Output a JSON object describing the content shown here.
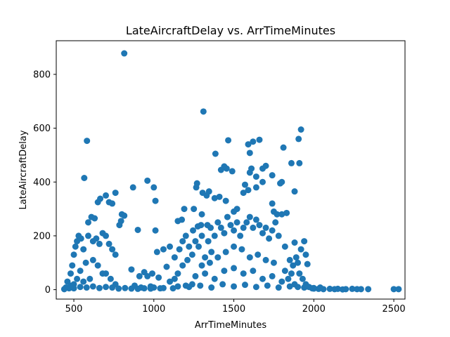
{
  "chart_data": {
    "type": "scatter",
    "title": "LateAircraftDelay vs. ArrTimeMinutes",
    "xlabel": "ArrTimeMinutes",
    "ylabel": "LateAircraftDelay",
    "xlim": [
      390,
      2570
    ],
    "ylim": [
      -35,
      925
    ],
    "xticks": [
      500,
      1000,
      1500,
      2000,
      2500
    ],
    "yticks": [
      0,
      200,
      400,
      600,
      800
    ],
    "grid": false,
    "marker_color": "#1f77b4",
    "series": [
      {
        "points": [
          [
            815,
            878
          ],
          [
            1310,
            662
          ],
          [
            582,
            553
          ],
          [
            1920,
            595
          ],
          [
            1905,
            560
          ],
          [
            1465,
            555
          ],
          [
            1660,
            557
          ],
          [
            1620,
            550
          ],
          [
            1590,
            540
          ],
          [
            1600,
            508
          ],
          [
            1810,
            528
          ],
          [
            1385,
            505
          ],
          [
            1420,
            445
          ],
          [
            1440,
            458
          ],
          [
            1455,
            450
          ],
          [
            1490,
            440
          ],
          [
            1610,
            450
          ],
          [
            1600,
            435
          ],
          [
            1640,
            420
          ],
          [
            1680,
            450
          ],
          [
            1700,
            460
          ],
          [
            1740,
            425
          ],
          [
            1680,
            400
          ],
          [
            1800,
            400
          ],
          [
            1790,
            395
          ],
          [
            1860,
            470
          ],
          [
            1910,
            470
          ],
          [
            1880,
            365
          ],
          [
            1570,
            390
          ],
          [
            1590,
            370
          ],
          [
            1640,
            380
          ],
          [
            1560,
            360
          ],
          [
            1270,
            395
          ],
          [
            1265,
            380
          ],
          [
            1305,
            360
          ],
          [
            1330,
            350
          ],
          [
            1345,
            365
          ],
          [
            1380,
            340
          ],
          [
            1410,
            345
          ],
          [
            1450,
            330
          ],
          [
            565,
            415
          ],
          [
            960,
            405
          ],
          [
            1000,
            380
          ],
          [
            870,
            380
          ],
          [
            760,
            360
          ],
          [
            1010,
            330
          ],
          [
            700,
            350
          ],
          [
            665,
            338
          ],
          [
            720,
            325
          ],
          [
            740,
            320
          ],
          [
            650,
            325
          ],
          [
            610,
            270
          ],
          [
            630,
            265
          ],
          [
            800,
            280
          ],
          [
            815,
            275
          ],
          [
            795,
            255
          ],
          [
            785,
            240
          ],
          [
            590,
            250
          ],
          [
            1150,
            255
          ],
          [
            1175,
            260
          ],
          [
            1190,
            300
          ],
          [
            1250,
            300
          ],
          [
            1300,
            280
          ],
          [
            1500,
            290
          ],
          [
            1520,
            300
          ],
          [
            1740,
            320
          ],
          [
            1750,
            290
          ],
          [
            1770,
            280
          ],
          [
            1800,
            280
          ],
          [
            1830,
            285
          ],
          [
            1880,
            175
          ],
          [
            1920,
            150
          ],
          [
            1940,
            180
          ],
          [
            1950,
            130
          ],
          [
            1960,
            95
          ],
          [
            1245,
            220
          ],
          [
            1275,
            235
          ],
          [
            1295,
            240
          ],
          [
            1335,
            240
          ],
          [
            1355,
            230
          ],
          [
            1010,
            220
          ],
          [
            900,
            222
          ],
          [
            1020,
            140
          ],
          [
            1060,
            150
          ],
          [
            1100,
            160
          ],
          [
            1130,
            120
          ],
          [
            1080,
            85
          ],
          [
            760,
            130
          ],
          [
            860,
            75
          ],
          [
            910,
            50
          ],
          [
            940,
            65
          ],
          [
            960,
            50
          ],
          [
            990,
            60
          ],
          [
            1030,
            45
          ],
          [
            700,
            60
          ],
          [
            730,
            40
          ],
          [
            760,
            20
          ],
          [
            880,
            15
          ],
          [
            920,
            8
          ],
          [
            980,
            12
          ],
          [
            1000,
            8
          ],
          [
            1040,
            5
          ],
          [
            1120,
            5
          ],
          [
            1150,
            12
          ],
          [
            1200,
            15
          ],
          [
            1240,
            20
          ],
          [
            2200,
            2
          ],
          [
            2240,
            3
          ],
          [
            2150,
            3
          ],
          [
            2270,
            2
          ],
          [
            2295,
            2
          ],
          [
            2340,
            2
          ],
          [
            2500,
            2
          ],
          [
            2530,
            2
          ],
          [
            2180,
            1
          ],
          [
            2100,
            3
          ],
          [
            2060,
            2
          ],
          [
            2000,
            4
          ],
          [
            2030,
            3
          ],
          [
            2130,
            2
          ],
          [
            440,
            2
          ],
          [
            450,
            8
          ],
          [
            470,
            5
          ],
          [
            460,
            30
          ],
          [
            480,
            15
          ],
          [
            500,
            20
          ],
          [
            480,
            60
          ],
          [
            490,
            90
          ],
          [
            500,
            130
          ],
          [
            510,
            160
          ],
          [
            520,
            180
          ],
          [
            530,
            200
          ],
          [
            545,
            190
          ],
          [
            560,
            150
          ],
          [
            575,
            100
          ],
          [
            590,
            200
          ],
          [
            620,
            180
          ],
          [
            640,
            190
          ],
          [
            660,
            170
          ],
          [
            680,
            210
          ],
          [
            700,
            200
          ],
          [
            720,
            170
          ],
          [
            740,
            150
          ],
          [
            620,
            110
          ],
          [
            650,
            90
          ],
          [
            680,
            60
          ],
          [
            600,
            40
          ],
          [
            560,
            30
          ],
          [
            540,
            70
          ],
          [
            520,
            40
          ],
          [
            1260,
            180
          ],
          [
            1280,
            160
          ],
          [
            1300,
            200
          ],
          [
            1320,
            120
          ],
          [
            1340,
            180
          ],
          [
            1360,
            140
          ],
          [
            1380,
            200
          ],
          [
            1400,
            250
          ],
          [
            1420,
            230
          ],
          [
            1440,
            210
          ],
          [
            1460,
            270
          ],
          [
            1480,
            240
          ],
          [
            1500,
            220
          ],
          [
            1520,
            250
          ],
          [
            1540,
            200
          ],
          [
            1560,
            230
          ],
          [
            1580,
            250
          ],
          [
            1600,
            270
          ],
          [
            1620,
            230
          ],
          [
            1640,
            260
          ],
          [
            1660,
            240
          ],
          [
            1680,
            210
          ],
          [
            1700,
            230
          ],
          [
            1720,
            190
          ],
          [
            1740,
            220
          ],
          [
            1760,
            250
          ],
          [
            1780,
            200
          ],
          [
            1820,
            160
          ],
          [
            1850,
            110
          ],
          [
            1870,
            90
          ],
          [
            1890,
            120
          ],
          [
            1900,
            100
          ],
          [
            1910,
            60
          ],
          [
            1930,
            40
          ],
          [
            1950,
            20
          ],
          [
            1970,
            10
          ],
          [
            1990,
            5
          ],
          [
            1860,
            60
          ],
          [
            1840,
            40
          ],
          [
            1820,
            70
          ],
          [
            1160,
            150
          ],
          [
            1180,
            180
          ],
          [
            1200,
            200
          ],
          [
            1220,
            160
          ],
          [
            1240,
            130
          ],
          [
            1210,
            110
          ],
          [
            1180,
            90
          ],
          [
            1150,
            60
          ],
          [
            1130,
            40
          ],
          [
            1100,
            30
          ],
          [
            1300,
            90
          ],
          [
            1350,
            100
          ],
          [
            1400,
            120
          ],
          [
            1450,
            140
          ],
          [
            1500,
            160
          ],
          [
            1550,
            150
          ],
          [
            1600,
            120
          ],
          [
            1650,
            130
          ],
          [
            1700,
            110
          ],
          [
            1750,
            100
          ],
          [
            1260,
            50
          ],
          [
            1320,
            60
          ],
          [
            1380,
            40
          ],
          [
            1440,
            70
          ],
          [
            1500,
            80
          ],
          [
            1560,
            60
          ],
          [
            1620,
            70
          ],
          [
            1680,
            40
          ],
          [
            1740,
            50
          ],
          [
            1800,
            30
          ],
          [
            1220,
            10
          ],
          [
            1290,
            15
          ],
          [
            1360,
            8
          ],
          [
            1430,
            20
          ],
          [
            1500,
            12
          ],
          [
            1570,
            18
          ],
          [
            1640,
            10
          ],
          [
            1710,
            15
          ],
          [
            1780,
            8
          ],
          [
            1850,
            12
          ],
          [
            1880,
            20
          ],
          [
            1900,
            10
          ],
          [
            1940,
            8
          ],
          [
            1960,
            12
          ],
          [
            2000,
            6
          ],
          [
            2040,
            8
          ],
          [
            500,
            5
          ],
          [
            540,
            10
          ],
          [
            580,
            8
          ],
          [
            620,
            12
          ],
          [
            660,
            6
          ],
          [
            700,
            10
          ],
          [
            740,
            8
          ],
          [
            780,
            4
          ],
          [
            820,
            6
          ],
          [
            860,
            4
          ],
          [
            900,
            3
          ],
          [
            940,
            5
          ],
          [
            980,
            4
          ],
          [
            1060,
            6
          ]
        ]
      }
    ]
  }
}
